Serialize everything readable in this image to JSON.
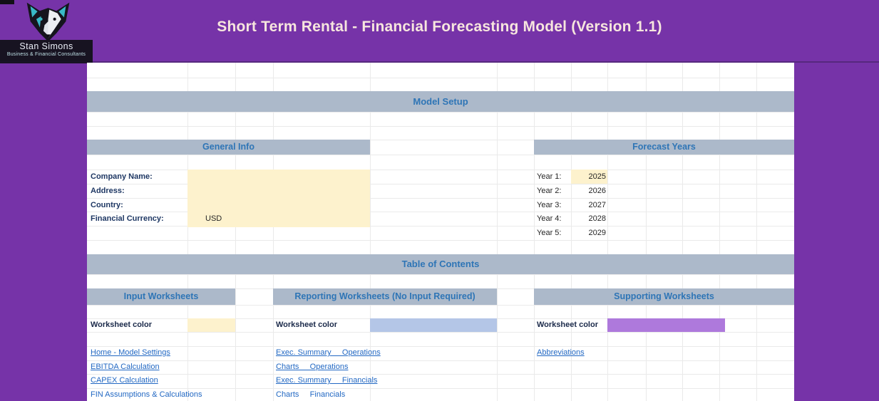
{
  "header": {
    "title": "Short Term Rental - Financial Forecasting Model (Version 1.1)",
    "logo": {
      "name": "Stan Simons",
      "tagline": "Business & Financial Consultants"
    }
  },
  "model_setup": {
    "title": "Model Setup"
  },
  "general_info": {
    "title": "General Info",
    "fields": [
      {
        "label": "Company Name:",
        "value": ""
      },
      {
        "label": "Address:",
        "value": ""
      },
      {
        "label": "Country:",
        "value": ""
      },
      {
        "label": "Financial Currency:",
        "value": "USD"
      }
    ]
  },
  "forecast_years": {
    "title": "Forecast Years",
    "years": [
      {
        "label": "Year 1:",
        "value": "2025"
      },
      {
        "label": "Year 2:",
        "value": "2026"
      },
      {
        "label": "Year 3:",
        "value": "2027"
      },
      {
        "label": "Year 4:",
        "value": "2028"
      },
      {
        "label": "Year 5:",
        "value": "2029"
      }
    ]
  },
  "toc": {
    "title": "Table of Contents",
    "worksheet_color_label": "Worksheet color",
    "columns": [
      {
        "title": "Input Worksheets",
        "swatch_color": "#fdf2cd",
        "links": [
          "Home - Model Settings",
          "EBITDA Calculation",
          "CAPEX Calculation",
          "FIN Assumptions & Calculations"
        ]
      },
      {
        "title": "Reporting Worksheets (No Input Required)",
        "swatch_color": "#b4c6e7",
        "links": [
          "Exec. Summary     Operations",
          "Charts     Operations",
          "Exec. Summary     Financials",
          "Charts     Financials"
        ]
      },
      {
        "title": "Supporting Worksheets",
        "swatch_color": "#ae79dc",
        "links": [
          "Abbreviations"
        ]
      }
    ]
  },
  "colors": {
    "page_background": "#7633a8",
    "section_band": "#acb9ca",
    "heading_blue": "#2e75b6",
    "link_blue": "#2268c3",
    "input_fill": "#fdf2cd"
  }
}
